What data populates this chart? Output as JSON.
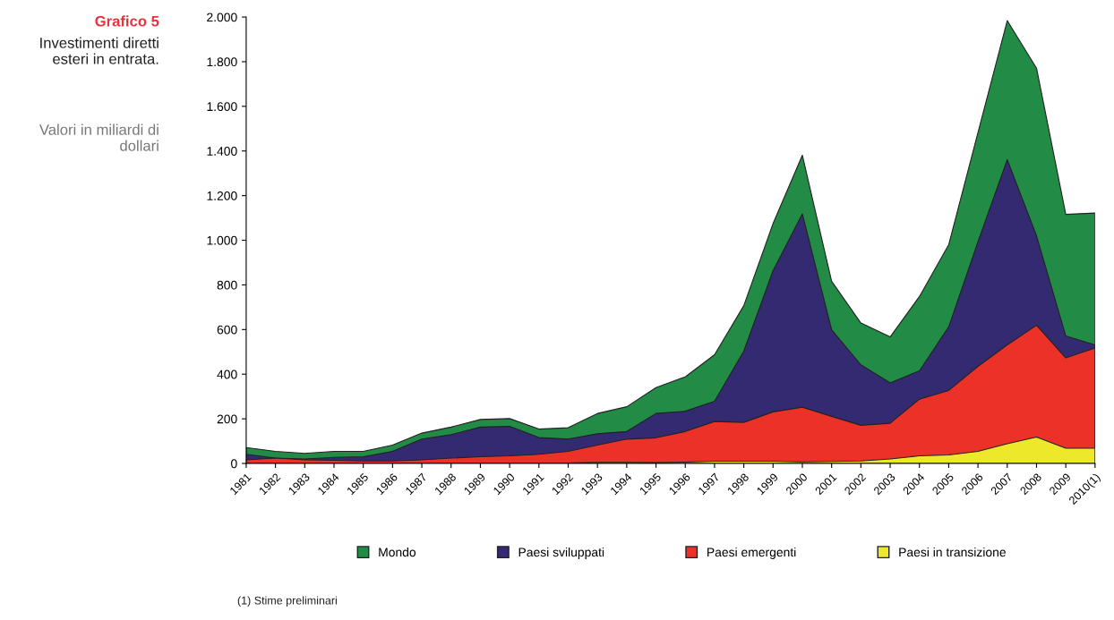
{
  "chart_data": {
    "type": "area",
    "title": "Grafico 5",
    "subtitle": "Investimenti diretti esteri in entrata.",
    "annotations": [
      "Valori in miliardi di dollari",
      "(1) Stime preliminari"
    ],
    "categories": [
      "1981",
      "1982",
      "1983",
      "1984",
      "1985",
      "1986",
      "1987",
      "1988",
      "1989",
      "1990",
      "1991",
      "1992",
      "1993",
      "1994",
      "1995",
      "1996",
      "1997",
      "1998",
      "1999",
      "2000",
      "2001",
      "2002",
      "2003",
      "2004",
      "2005",
      "2006",
      "2007",
      "2008",
      "2009",
      "2010(1)"
    ],
    "series": [
      {
        "name": "Mondo",
        "color": "#228b45",
        "values": [
          71,
          54,
          45,
          54,
          54,
          82,
          136,
          163,
          197,
          201,
          154,
          160,
          224,
          254,
          340,
          388,
          487,
          707,
          1075,
          1381,
          816,
          629,
          567,
          748,
          980,
          1483,
          1984,
          1771,
          1116,
          1122
        ]
      },
      {
        "name": "Paesi sviluppati",
        "color": "#332a72",
        "values": [
          41,
          24,
          20,
          27,
          30,
          54,
          109,
          129,
          163,
          166,
          116,
          109,
          133,
          143,
          224,
          234,
          279,
          503,
          864,
          1118,
          599,
          442,
          361,
          415,
          612,
          993,
          1361,
          1020,
          571,
          531
        ]
      },
      {
        "name": "Paesi emergenti",
        "color": "#ec3228",
        "values": [
          16,
          24,
          16,
          14,
          11,
          11,
          16,
          24,
          30,
          34,
          41,
          54,
          82,
          109,
          115,
          143,
          188,
          184,
          231,
          252,
          211,
          171,
          180,
          288,
          327,
          435,
          531,
          619,
          473,
          517
        ]
      },
      {
        "name": "Paesi in transizione",
        "color": "#eee82a",
        "values": [
          0,
          0,
          0,
          0,
          0,
          0,
          0,
          0,
          0,
          0,
          0,
          2,
          5,
          5,
          4,
          6,
          10,
          10,
          10,
          7,
          9,
          11,
          20,
          34,
          38,
          54,
          88,
          118,
          68,
          68
        ]
      }
    ],
    "ylim": [
      0,
      2000
    ],
    "yticks": [
      0,
      200,
      400,
      600,
      800,
      {
        "value": 1000,
        "label": "1.000"
      },
      {
        "value": 1200,
        "label": "1.200"
      },
      {
        "value": 1400,
        "label": "1.400"
      },
      {
        "value": 1600,
        "label": "1.600"
      },
      {
        "value": 1800,
        "label": "1.800"
      },
      {
        "value": 2000,
        "label": "2.000"
      }
    ],
    "grid": false,
    "legend": "bottom"
  }
}
